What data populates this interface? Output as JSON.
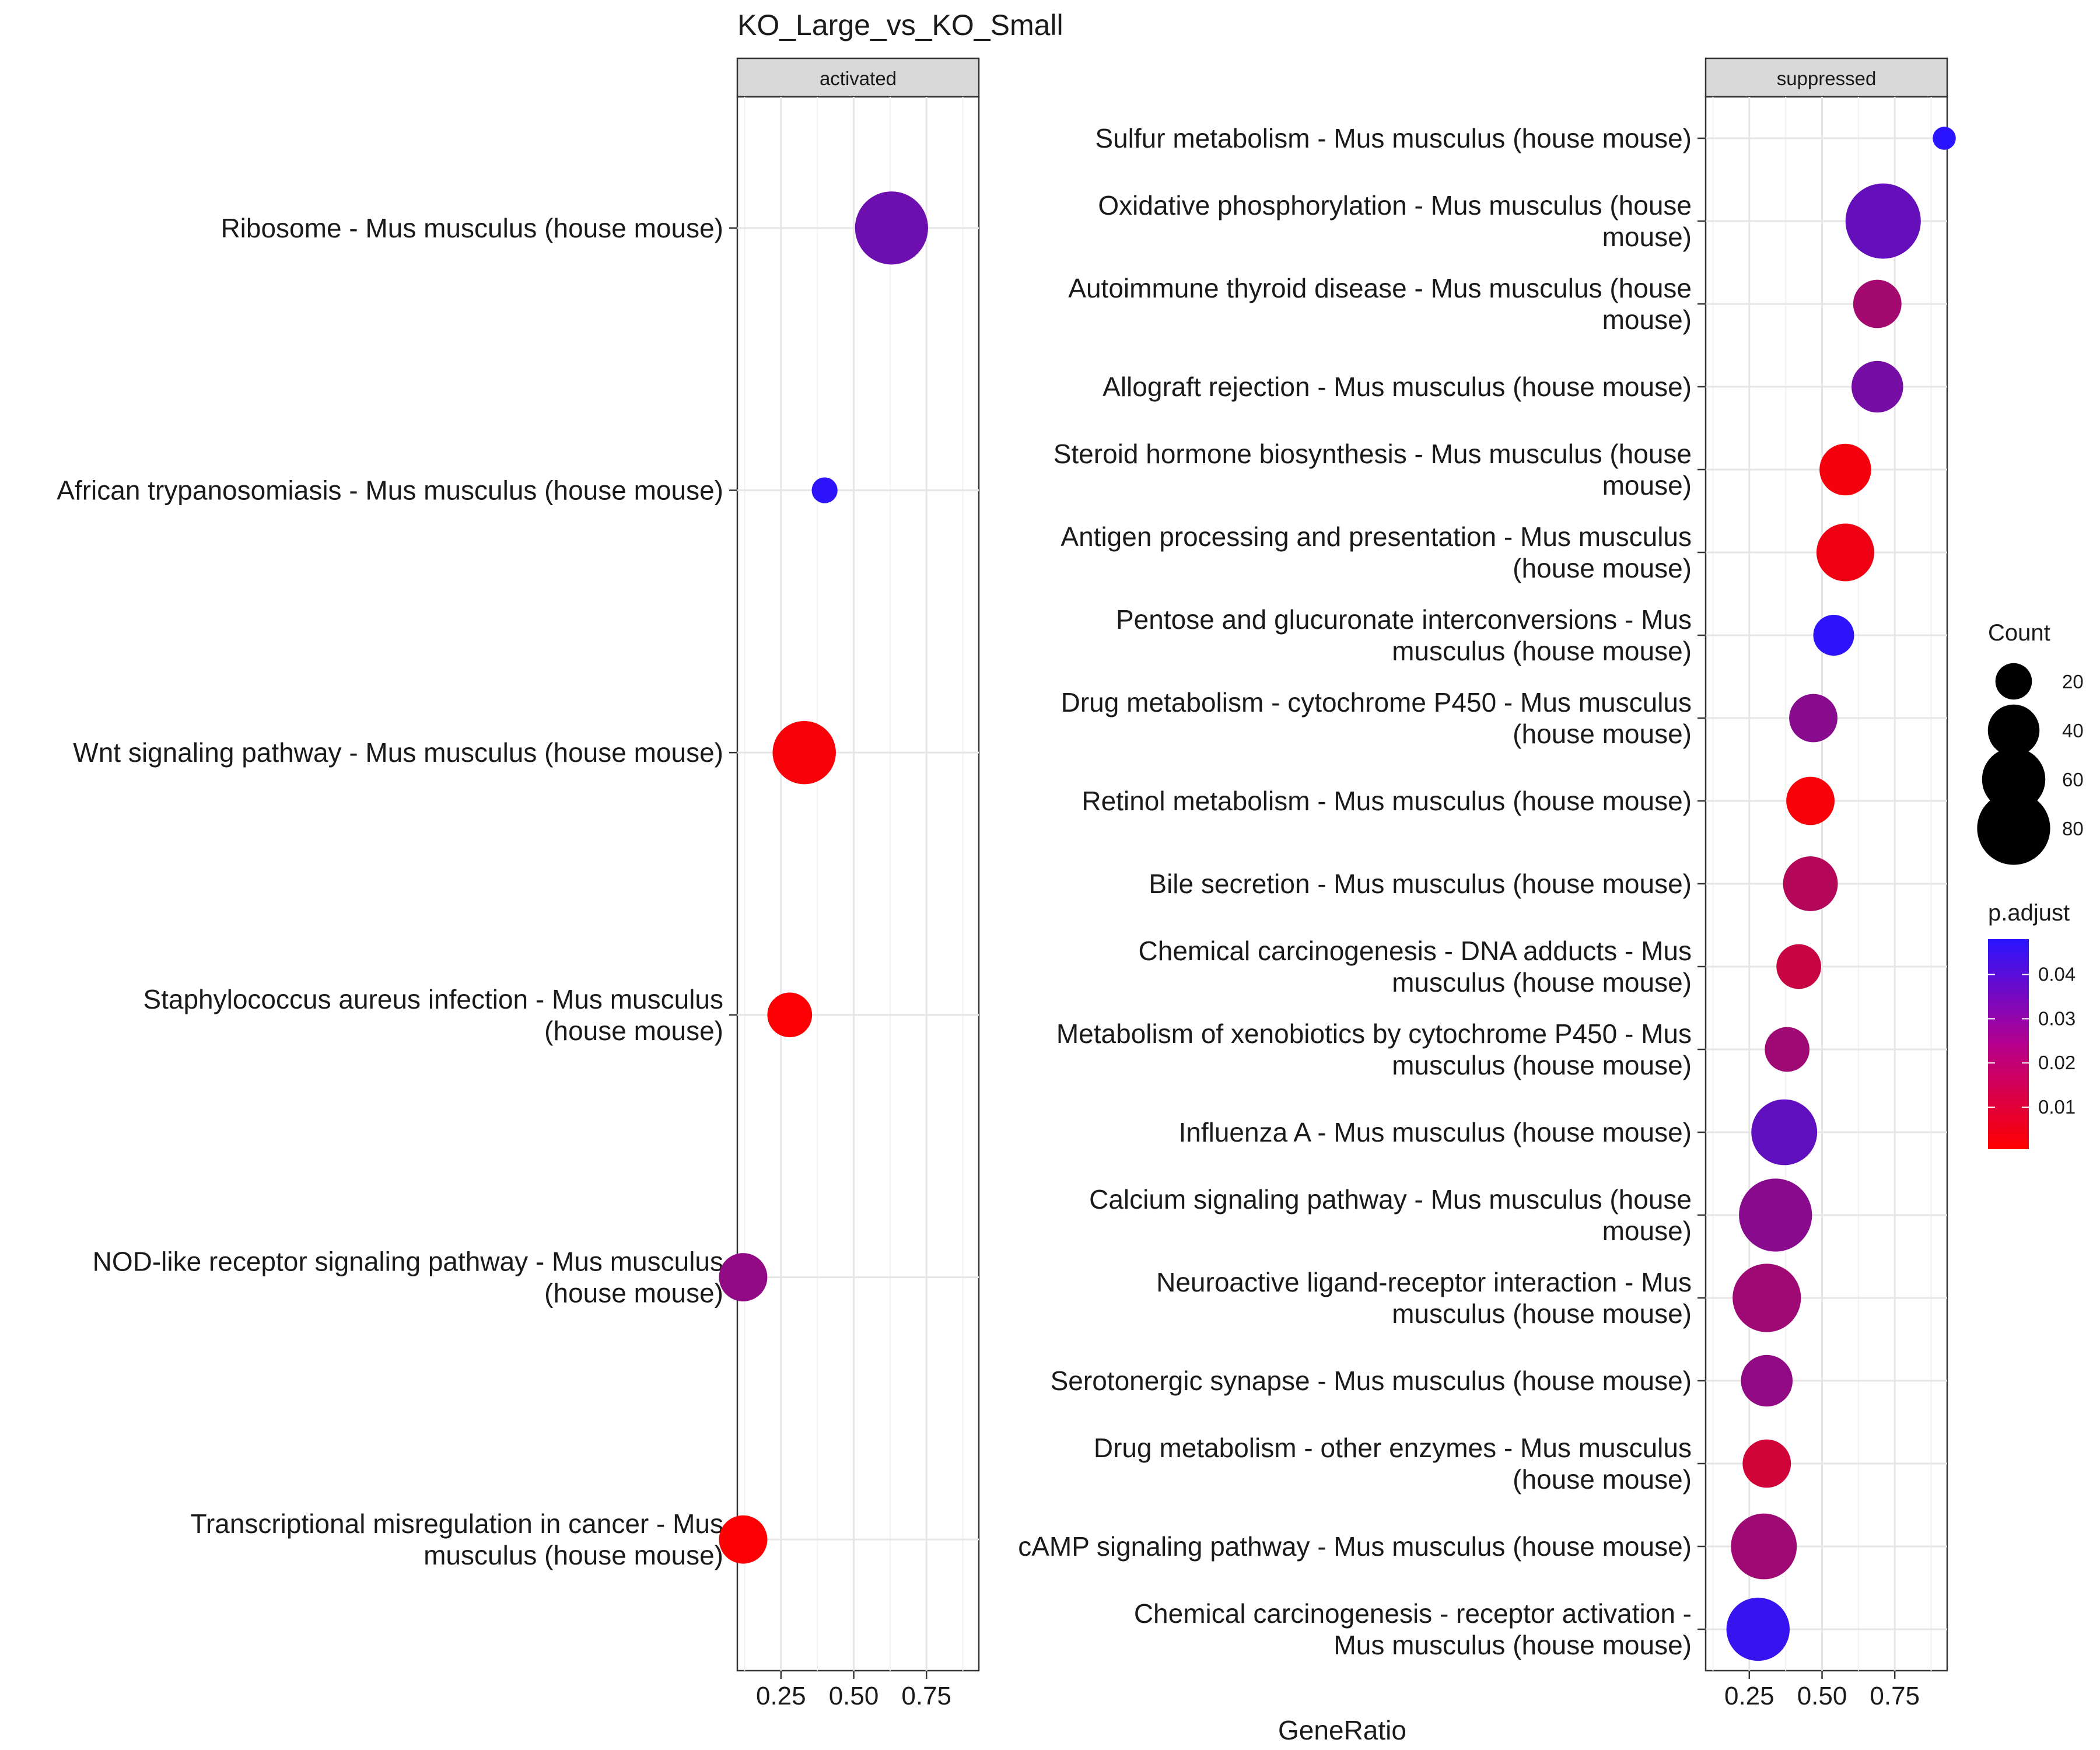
{
  "chart_data": {
    "type": "scatter",
    "title": "KO_Large_vs_KO_Small",
    "xlabel": "GeneRatio",
    "ylabel": "",
    "xlim": [
      0.1,
      0.93
    ],
    "x_ticks": [
      "0.25",
      "0.50",
      "0.75"
    ],
    "x_tick_values": [
      0.25,
      0.5,
      0.75
    ],
    "grid": true,
    "panels": [
      {
        "name": "activated",
        "points": [
          {
            "label": "Ribosome - Mus musculus (house mouse)",
            "gene_ratio": 0.63,
            "count": 80,
            "p_adjust": 0.033
          },
          {
            "label": "African trypanosomiasis - Mus musculus (house mouse)",
            "gene_ratio": 0.4,
            "count": 10,
            "p_adjust": 0.047
          },
          {
            "label": "Wnt signaling pathway - Mus musculus (house mouse)",
            "gene_ratio": 0.33,
            "count": 60,
            "p_adjust": 0.002
          },
          {
            "label": "Staphylococcus aureus infection - Mus musculus (house mouse)",
            "gene_ratio": 0.28,
            "count": 30,
            "p_adjust": 0.001
          },
          {
            "label": "NOD-like receptor signaling pathway - Mus musculus (house mouse)",
            "gene_ratio": 0.12,
            "count": 35,
            "p_adjust": 0.025
          },
          {
            "label": "Transcriptional misregulation in cancer - Mus musculus (house mouse)",
            "gene_ratio": 0.12,
            "count": 35,
            "p_adjust": 0.001
          }
        ]
      },
      {
        "name": "suppressed",
        "points": [
          {
            "label": "Sulfur metabolism - Mus musculus (house mouse)",
            "gene_ratio": 0.92,
            "count": 8,
            "p_adjust": 0.048
          },
          {
            "label": "Oxidative phosphorylation - Mus musculus (house mouse)",
            "gene_ratio": 0.71,
            "count": 85,
            "p_adjust": 0.035
          },
          {
            "label": "Autoimmune thyroid disease - Mus musculus (house mouse)",
            "gene_ratio": 0.69,
            "count": 35,
            "p_adjust": 0.021
          },
          {
            "label": "Allograft rejection - Mus musculus (house mouse)",
            "gene_ratio": 0.69,
            "count": 40,
            "p_adjust": 0.031
          },
          {
            "label": "Steroid hormone biosynthesis - Mus musculus (house mouse)",
            "gene_ratio": 0.58,
            "count": 40,
            "p_adjust": 0.003
          },
          {
            "label": "Antigen processing and presentation - Mus musculus (house mouse)",
            "gene_ratio": 0.58,
            "count": 50,
            "p_adjust": 0.004
          },
          {
            "label": "Pentose and glucuronate interconversions - Mus musculus (house mouse)",
            "gene_ratio": 0.54,
            "count": 25,
            "p_adjust": 0.047
          },
          {
            "label": "Drug metabolism - cytochrome P450 - Mus musculus (house mouse)",
            "gene_ratio": 0.47,
            "count": 35,
            "p_adjust": 0.027
          },
          {
            "label": "Retinol metabolism - Mus musculus (house mouse)",
            "gene_ratio": 0.46,
            "count": 35,
            "p_adjust": 0.002
          },
          {
            "label": "Bile secretion - Mus musculus (house mouse)",
            "gene_ratio": 0.46,
            "count": 45,
            "p_adjust": 0.017
          },
          {
            "label": "Chemical carcinogenesis - DNA adducts - Mus musculus (house mouse)",
            "gene_ratio": 0.42,
            "count": 30,
            "p_adjust": 0.013
          },
          {
            "label": "Metabolism of xenobiotics by cytochrome P450 - Mus musculus (house mouse)",
            "gene_ratio": 0.38,
            "count": 30,
            "p_adjust": 0.022
          },
          {
            "label": "Influenza A - Mus musculus (house mouse)",
            "gene_ratio": 0.37,
            "count": 65,
            "p_adjust": 0.036
          },
          {
            "label": "Calcium signaling pathway - Mus musculus (house mouse)",
            "gene_ratio": 0.34,
            "count": 80,
            "p_adjust": 0.027
          },
          {
            "label": "Neuroactive ligand-receptor interaction - Mus musculus (house mouse)",
            "gene_ratio": 0.31,
            "count": 70,
            "p_adjust": 0.022
          },
          {
            "label": "Serotonergic synapse - Mus musculus (house mouse)",
            "gene_ratio": 0.31,
            "count": 40,
            "p_adjust": 0.025
          },
          {
            "label": "Drug metabolism - other enzymes - Mus musculus (house mouse)",
            "gene_ratio": 0.31,
            "count": 35,
            "p_adjust": 0.011
          },
          {
            "label": "cAMP signaling pathway - Mus musculus (house mouse)",
            "gene_ratio": 0.3,
            "count": 65,
            "p_adjust": 0.022
          },
          {
            "label": "Chemical carcinogenesis - receptor activation - Mus musculus (house mouse)",
            "gene_ratio": 0.28,
            "count": 60,
            "p_adjust": 0.045
          }
        ]
      }
    ],
    "legend_size": {
      "title": "Count",
      "entries": [
        {
          "label": "20",
          "value": 20
        },
        {
          "label": "40",
          "value": 40
        },
        {
          "label": "60",
          "value": 60
        },
        {
          "label": "80",
          "value": 80
        }
      ]
    },
    "legend_color": {
      "title": "p.adjust",
      "ticks": [
        {
          "label": "0.04",
          "value": 0.04
        },
        {
          "label": "0.03",
          "value": 0.03
        },
        {
          "label": "0.02",
          "value": 0.02
        },
        {
          "label": "0.01",
          "value": 0.01
        }
      ],
      "range": [
        0.0005,
        0.048
      ],
      "low_color": "#ff0000",
      "high_color": "#2a14ff"
    },
    "legend_placement": "right"
  }
}
